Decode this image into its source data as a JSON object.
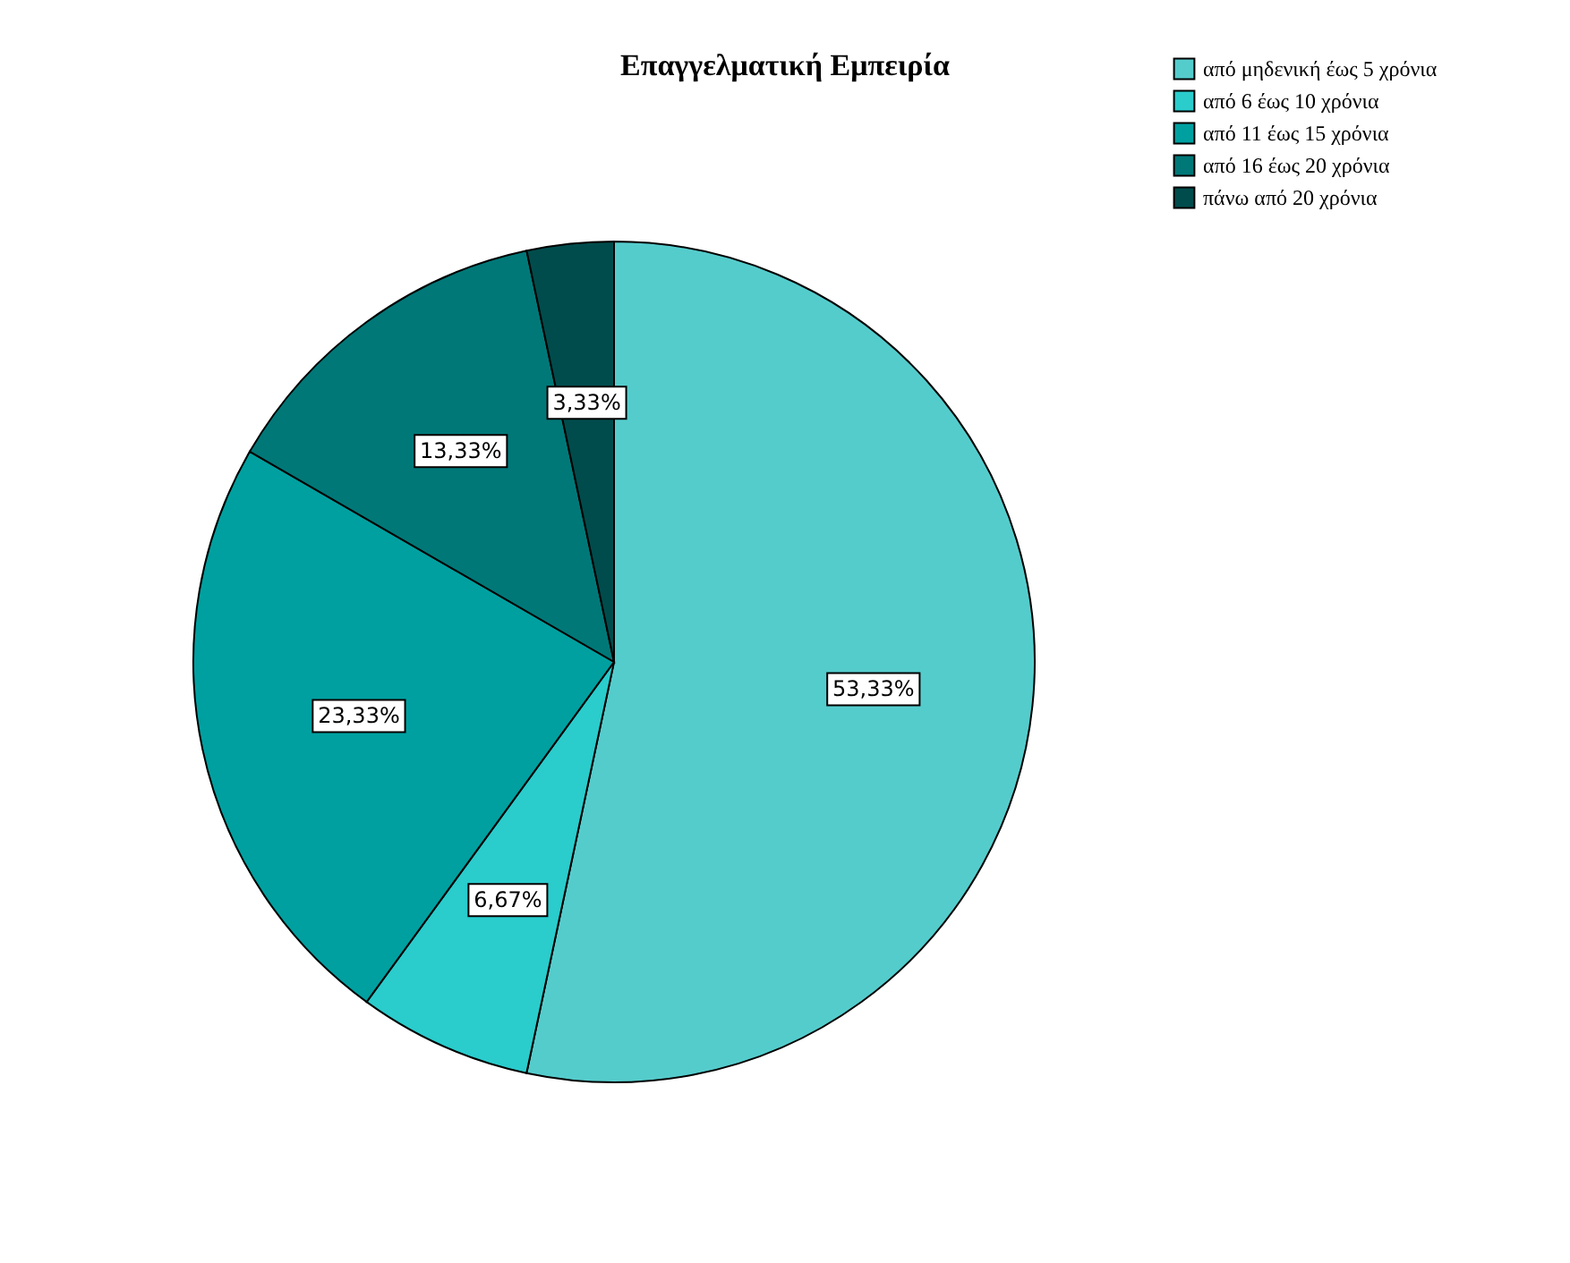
{
  "chart_data": {
    "type": "pie",
    "title": "Επαγγελματική Εμπειρία",
    "categories": [
      "από μηδενική έως 5 χρόνια",
      "από 6 έως 10 χρόνια",
      "από 11 έως 15 χρόνια",
      "από 16 έως 20 χρόνια",
      "πάνω από 20 χρόνια"
    ],
    "values": [
      53.33,
      6.67,
      23.33,
      13.33,
      3.33
    ],
    "colors": [
      "#55cccc",
      "#2acccc",
      "#00a0a0",
      "#007878",
      "#004c4c"
    ],
    "value_labels": [
      "53,33%",
      "6,67%",
      "23,33%",
      "13,33%",
      "3,33%"
    ],
    "legend": "top right"
  }
}
